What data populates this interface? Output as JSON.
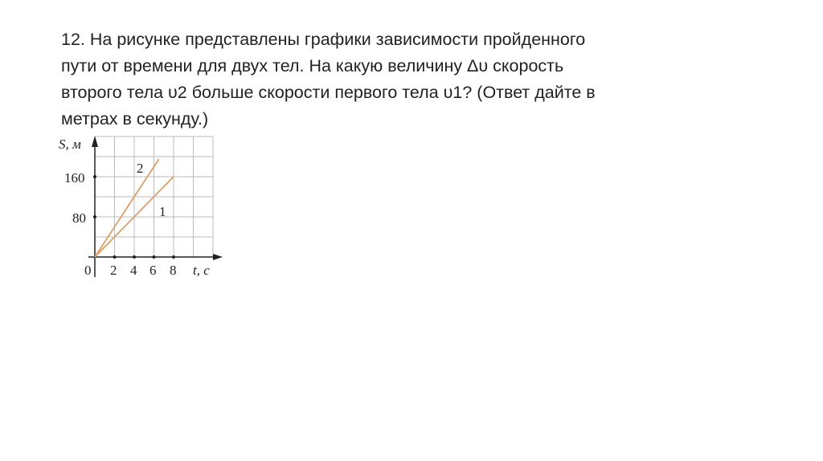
{
  "question": {
    "lines": [
      "12. На рисунке представлены графики зависимости пройденного",
      "пути от времени для двух тел. На какую величину Δυ скорость",
      "второго тела υ2 больше скорости первого тела υ1? (Ответ дайте в",
      "метрах в секунду.)"
    ]
  },
  "chart_data": {
    "type": "line",
    "xlabel": "t, с",
    "ylabel": "S, м",
    "x_tick_labels": [
      "0",
      "2",
      "4",
      "6",
      "8"
    ],
    "y_tick_labels": [
      "80",
      "160"
    ],
    "xlim": [
      0,
      12
    ],
    "ylim": [
      0,
      240
    ],
    "grid": true,
    "line_color": "#d9a066",
    "series": [
      {
        "name": "1",
        "x": [
          0,
          8
        ],
        "y": [
          0,
          160
        ]
      },
      {
        "name": "2",
        "x": [
          0,
          6.5
        ],
        "y": [
          0,
          195
        ]
      }
    ]
  }
}
